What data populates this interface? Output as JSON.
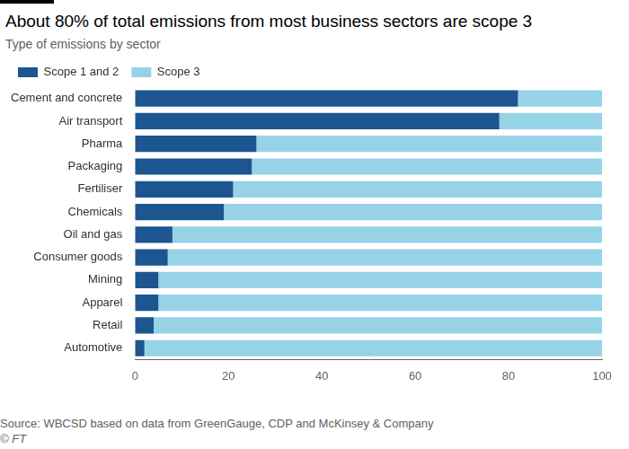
{
  "chart_data": {
    "type": "bar",
    "title": "About 80% of total emissions from most business sectors are scope 3",
    "subtitle": "Type of emissions by sector",
    "orientation": "horizontal",
    "stacked": true,
    "categories": [
      "Cement and concrete",
      "Air transport",
      "Pharma",
      "Packaging",
      "Fertiliser",
      "Chemicals",
      "Oil and gas",
      "Consumer goods",
      "Mining",
      "Apparel",
      "Retail",
      "Automotive"
    ],
    "series": [
      {
        "name": "Scope 1 and 2",
        "color": "#1d5591",
        "values": [
          82,
          78,
          26,
          25,
          21,
          19,
          8,
          7,
          5,
          5,
          4,
          2
        ]
      },
      {
        "name": "Scope 3",
        "color": "#96d3e6",
        "values": [
          18,
          22,
          74,
          75,
          79,
          81,
          92,
          93,
          95,
          95,
          96,
          98
        ]
      }
    ],
    "xlim": [
      0,
      100
    ],
    "xticks": [
      0,
      20,
      40,
      60,
      80,
      100
    ],
    "grid": false,
    "legend": "top-left",
    "source": "Source: WBCSD based on data from GreenGauge, CDP and McKinsey & Company",
    "credit": "© FT"
  }
}
